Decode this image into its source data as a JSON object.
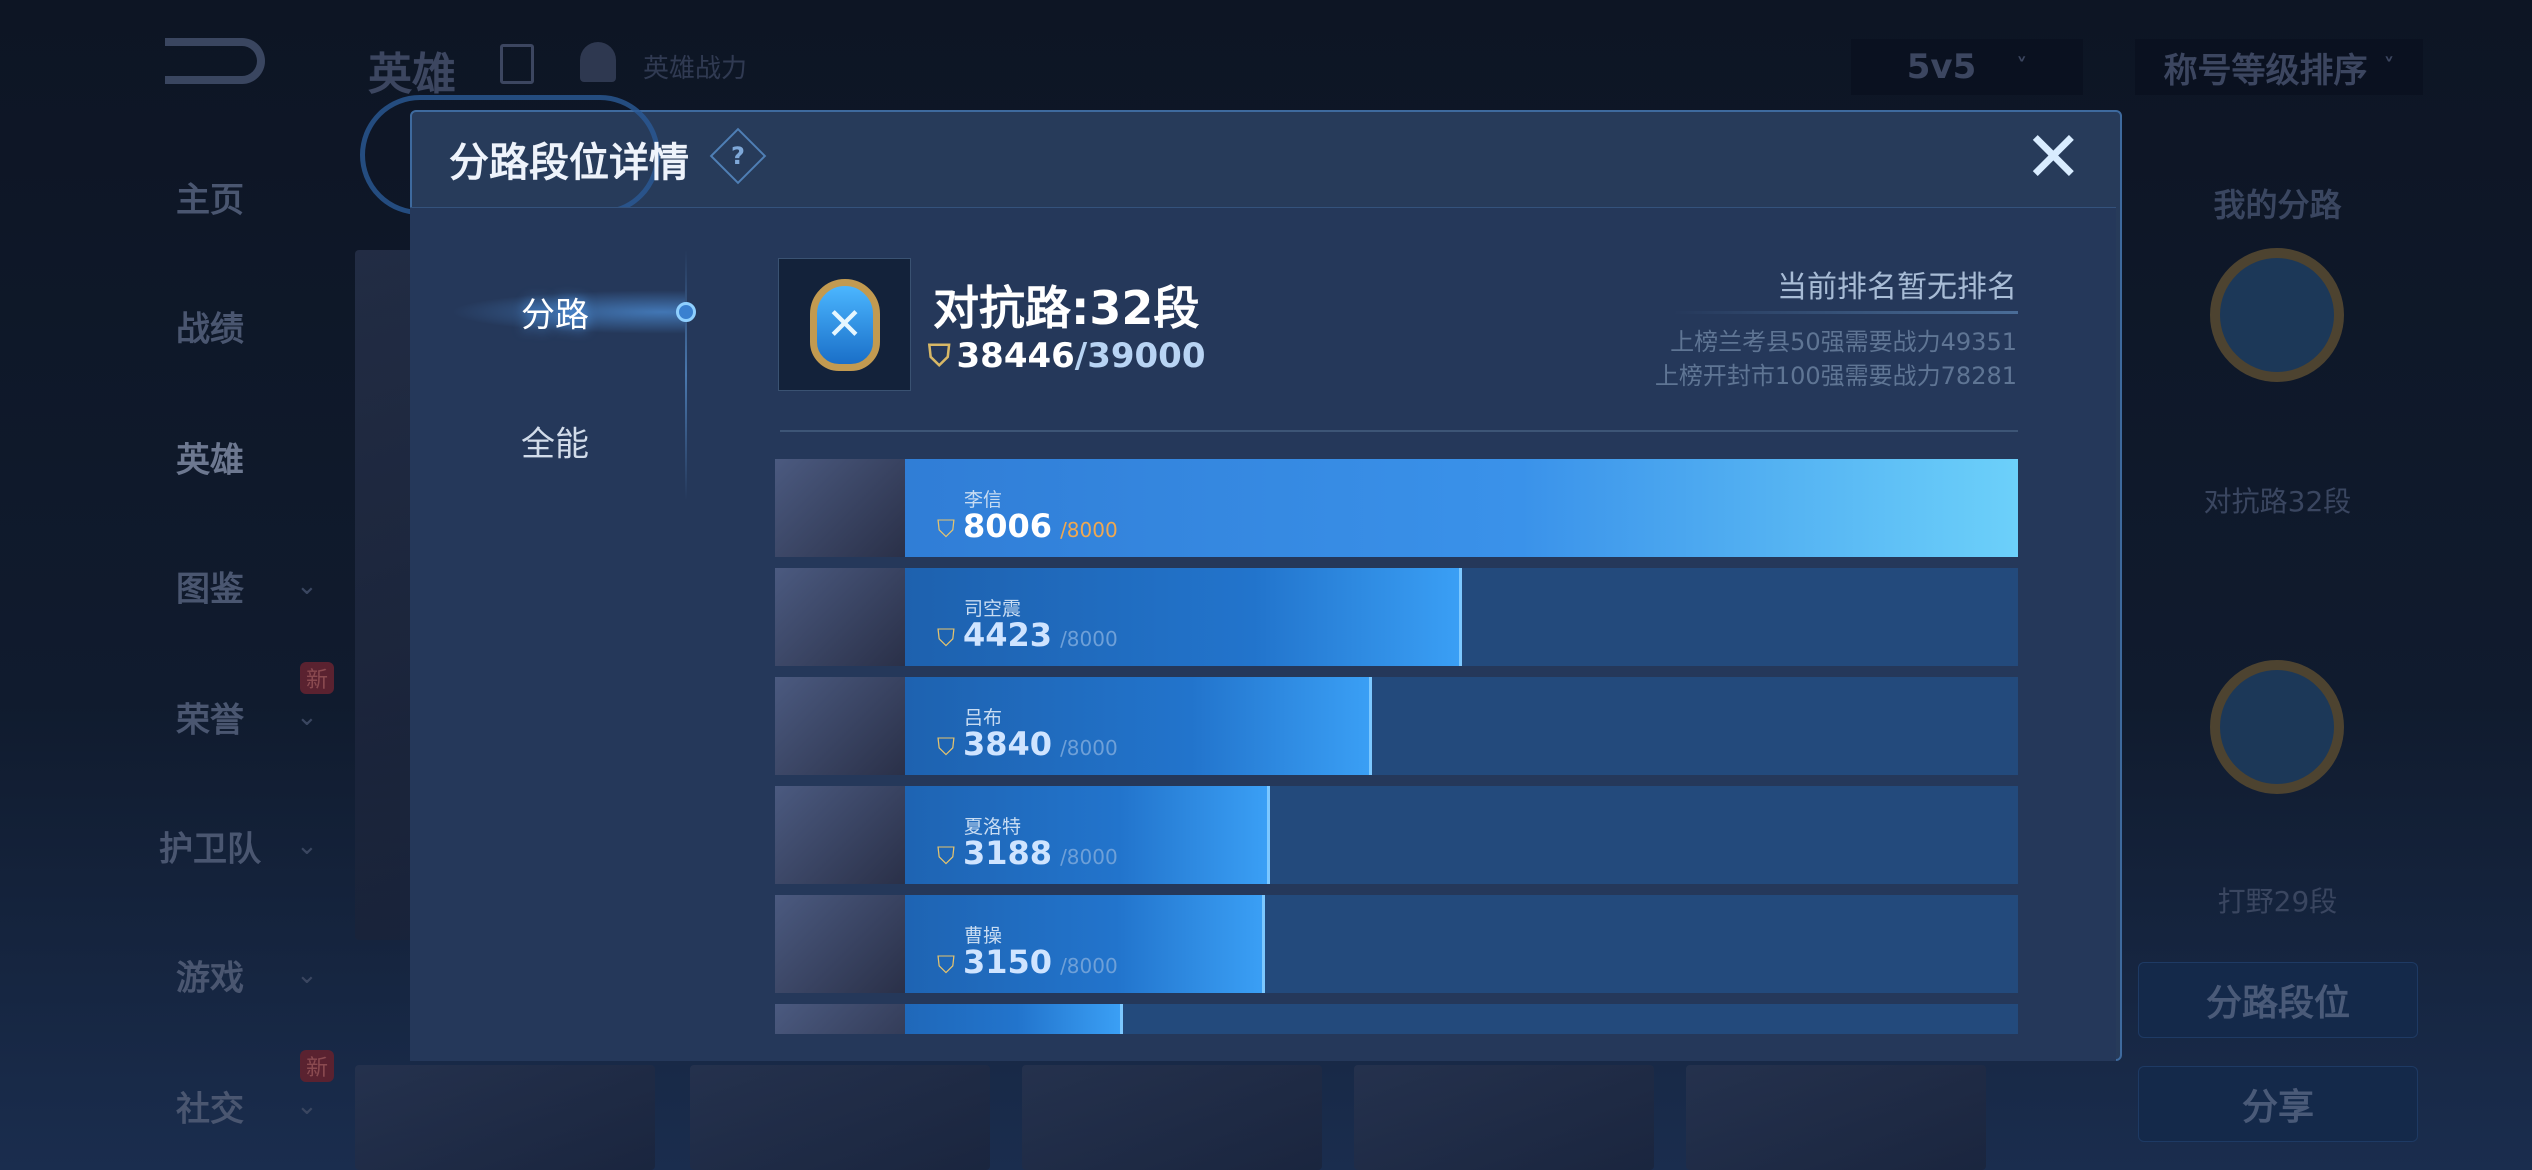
{
  "background": {
    "header": {
      "title": "英雄",
      "power_label": "英雄战力"
    },
    "filters": {
      "mode": "5v5",
      "sort": "称号等级排序"
    },
    "sidebar": {
      "items": [
        {
          "label": "主页",
          "chevron": false,
          "badge": ""
        },
        {
          "label": "战绩",
          "chevron": false,
          "badge": ""
        },
        {
          "label": "英雄",
          "chevron": false,
          "badge": "",
          "active": true
        },
        {
          "label": "图鉴",
          "chevron": true,
          "badge": ""
        },
        {
          "label": "荣誉",
          "chevron": true,
          "badge": "新"
        },
        {
          "label": "护卫队",
          "chevron": true,
          "badge": ""
        },
        {
          "label": "游戏",
          "chevron": true,
          "badge": ""
        },
        {
          "label": "社交",
          "chevron": true,
          "badge": "新"
        }
      ]
    },
    "right_panel": {
      "title": "我的分路",
      "lanes": [
        "对抗路32段",
        "打野29段"
      ],
      "lane_button": "分路段位",
      "share_button": "分享"
    }
  },
  "modal": {
    "title": "分路段位详情",
    "help_icon": "?",
    "close_icon": "✕",
    "tabs": [
      {
        "label": "分路",
        "active": true
      },
      {
        "label": "全能",
        "active": false
      }
    ],
    "summary": {
      "lane_title": "对抗路:32段",
      "score": "38446",
      "max": "/39000",
      "rank_status": "当前排名暂无排名",
      "requirements": [
        "上榜兰考县50强需要战力49351",
        "上榜开封市100强需要战力78281"
      ]
    },
    "heroes": [
      {
        "name": "李信",
        "score": "8006",
        "max": "/8000",
        "progress": 1.0
      },
      {
        "name": "司空震",
        "score": "4423",
        "max": "/8000",
        "progress": 0.553
      },
      {
        "name": "吕布",
        "score": "3840",
        "max": "/8000",
        "progress": 0.48
      },
      {
        "name": "夏洛特",
        "score": "3188",
        "max": "/8000",
        "progress": 0.3985
      },
      {
        "name": "曹操",
        "score": "3150",
        "max": "/8000",
        "progress": 0.394
      },
      {
        "name": "",
        "score": "",
        "max": "",
        "progress": 0.28
      }
    ]
  },
  "colors": {
    "modal_bg": "#273b5a",
    "bar_fill": "#2274cc",
    "accent_gold": "#e6c46e",
    "max_highlight": "#f0a850"
  }
}
